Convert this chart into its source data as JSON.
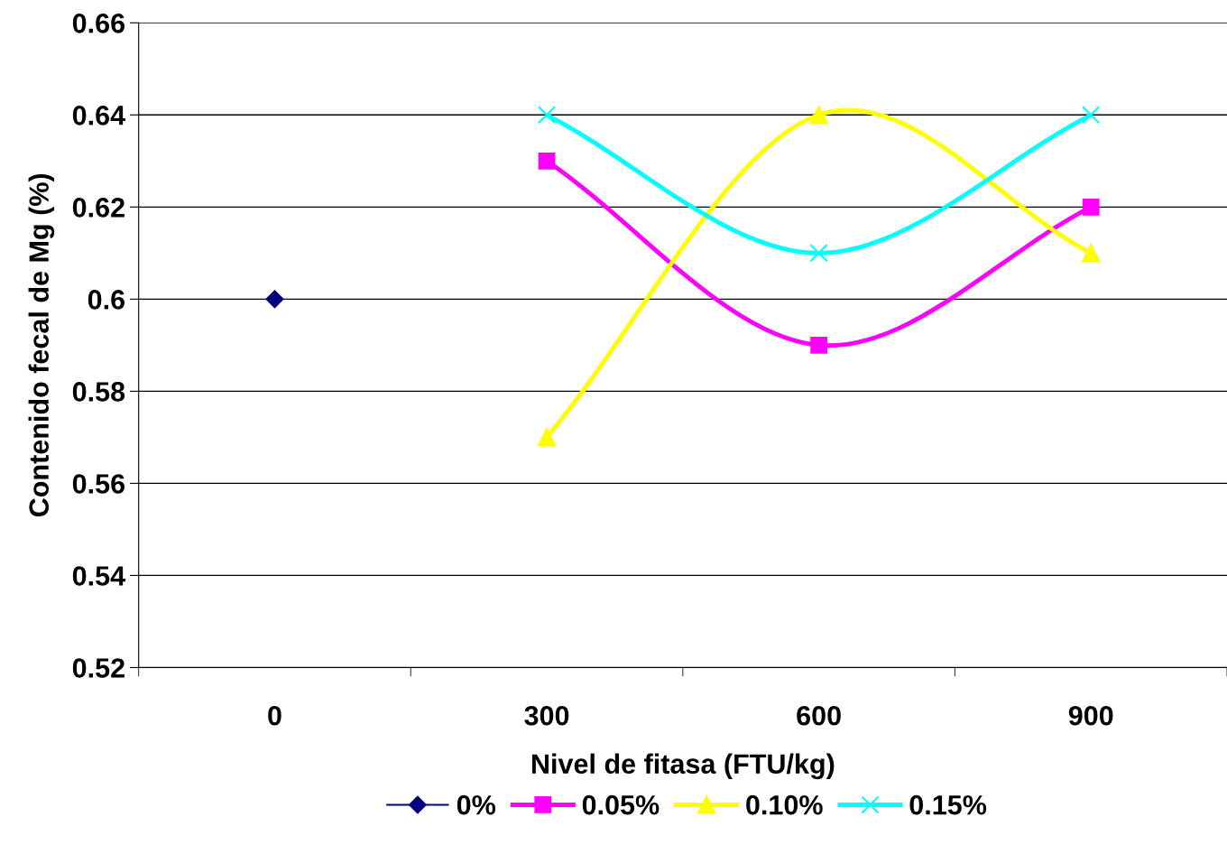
{
  "chart_data": {
    "type": "line",
    "xlabel": "Nivel de fitasa (FTU/kg)",
    "ylabel": "Contenido fecal de Mg (%)",
    "categories": [
      "0",
      "300",
      "600",
      "900"
    ],
    "series": [
      {
        "name": "0%",
        "color": "#000080",
        "marker": "diamond",
        "values": [
          0.6,
          null,
          null,
          null
        ]
      },
      {
        "name": "0.05%",
        "color": "#ff00ff",
        "marker": "square",
        "values": [
          null,
          0.63,
          0.59,
          0.62
        ]
      },
      {
        "name": "0.10%",
        "color": "#ffff00",
        "marker": "triangle",
        "values": [
          null,
          0.57,
          0.64,
          0.61
        ]
      },
      {
        "name": "0.15%",
        "color": "#00ffff",
        "marker": "cross",
        "values": [
          null,
          0.64,
          0.61,
          0.64
        ]
      }
    ],
    "ylim": [
      0.52,
      0.66
    ],
    "yticks": [
      0.52,
      0.54,
      0.56,
      0.58,
      0.6,
      0.62,
      0.64,
      0.66
    ],
    "grid": "y",
    "legend": "bottom",
    "line_style": "solid"
  }
}
